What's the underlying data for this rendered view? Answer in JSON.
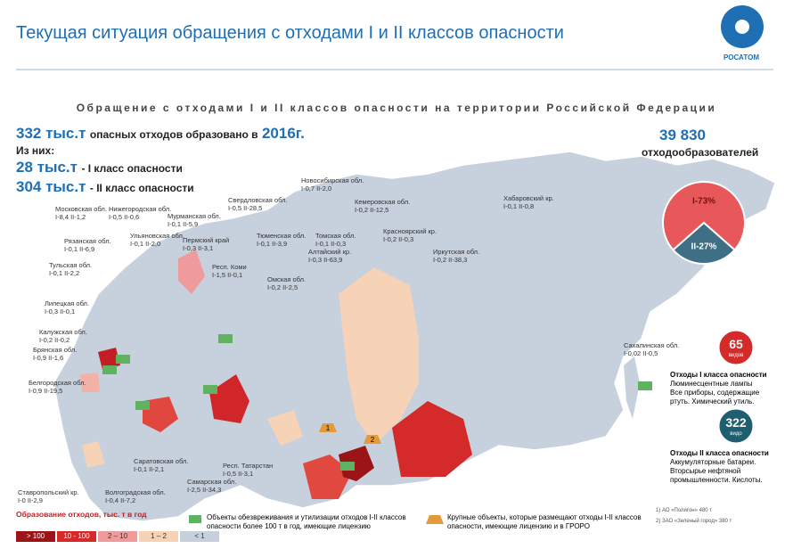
{
  "header": {
    "title": "Текущая ситуация обращения с отходами I и II классов опасности",
    "logo": "РОСАТОМ"
  },
  "subtitle": "Обращение с отходами I и II классов опасности на территории Российской Федерации",
  "stats": {
    "total": "332 тыс.т",
    "total_text": "опасных отходов образовано в",
    "year": "2016г.",
    "of_them": "Из них:",
    "class1": "28 тыс.т",
    "class1_text": "- I класс опасности",
    "class2": "304 тыс.т",
    "class2_text": "- II класс опасности"
  },
  "producers": {
    "count": "39 830",
    "label": "отходообразователей"
  },
  "pie": {
    "slices": [
      {
        "value": 73,
        "label": "I-73%",
        "color": "#e8585a"
      },
      {
        "value": 27,
        "label": "II-27%",
        "color": "#3f6f84"
      }
    ]
  },
  "class1": {
    "count": "65",
    "unit": "видов",
    "title": "Отходы I класса опасности",
    "text": "Люминесцентные лампы Все приборы, содержащие ртуть. Химический утиль."
  },
  "class2": {
    "count": "322",
    "unit": "видо",
    "title": "Отходы II класса опасности",
    "text": "Аккумуляторные батареи. Вторсырье нефтяной промышленности. Кислоты."
  },
  "sites": [
    "1",
    "2"
  ],
  "regions": [
    {
      "name": "Московская обл.",
      "values": "I-8,4 II-1,2"
    },
    {
      "name": "Нижегородская обл.",
      "values": "I-0,5 II-0,6"
    },
    {
      "name": "Мурманская обл.",
      "values": "I-0,1 II-5,9"
    },
    {
      "name": "Свердловская обл.",
      "values": "I-0,5 II-28,5"
    },
    {
      "name": "Новосибирская обл.",
      "values": "I-0,7 II-2,0"
    },
    {
      "name": "Кемеровская обл.",
      "values": "I-0,2 II-12,5"
    },
    {
      "name": "Хабаровский кр.",
      "values": "I-0,1 II-0,8"
    },
    {
      "name": "Рязанская обл.",
      "values": "I-0,1 II-6,9"
    },
    {
      "name": "Ульяновская обл.",
      "values": "I-0,1 II-2,0"
    },
    {
      "name": "Пермский край",
      "values": "I-0,3 II-3,1"
    },
    {
      "name": "Тюменская обл.",
      "values": "I-0,1 II-3,9"
    },
    {
      "name": "Томская обл.",
      "values": "I-0,1 II-0,3"
    },
    {
      "name": "Красноярский кр.",
      "values": "I-0,2 II-0,3"
    },
    {
      "name": "Алтайский кр.",
      "values": "I-0,3 II-63,9"
    },
    {
      "name": "Иркутская обл.",
      "values": "I-0,2 II-38,3"
    },
    {
      "name": "Тульская обл.",
      "values": "I-0,1 II-2,2"
    },
    {
      "name": "Респ. Коми",
      "values": "I-1,5 II-0,1"
    },
    {
      "name": "Омская обл.",
      "values": "I-0,2 II-2,5"
    },
    {
      "name": "Липецкая обл.",
      "values": "I-0,3 II-0,1"
    },
    {
      "name": "Калужская обл.",
      "values": "I-0,2 II-0,2"
    },
    {
      "name": "Брянская обл.",
      "values": "I-0,9 II-1,6"
    },
    {
      "name": "Сахалинская обл.",
      "values": "I-0,02 II-0,5"
    },
    {
      "name": "Белгородская обл.",
      "values": "I-0,9 II-19,5"
    },
    {
      "name": "Саратовская обл.",
      "values": "I-0,1 II-2,1"
    },
    {
      "name": "Респ. Татарстан",
      "values": "I-0,5 II-3,1"
    },
    {
      "name": "Самарская обл.",
      "values": "I-2,5 II-34,3"
    },
    {
      "name": "Волгоградская обл.",
      "values": "I-0,4 II-7,2"
    },
    {
      "name": "Ставропольский кр.",
      "values": "I-0 II-2,9"
    }
  ],
  "legend": {
    "title": "Образование отходов, тыс. т в год",
    "items": [
      {
        "label": "> 100",
        "color": "#9a1418"
      },
      {
        "label": "10 - 100",
        "color": "#d42a2a"
      },
      {
        "label": "2 – 10",
        "color": "#ef9b9b"
      },
      {
        "label": "1 – 2",
        "color": "#f6d3b6"
      },
      {
        "label": "< 1",
        "color": "#c7d0dd"
      }
    ],
    "facilities": "Объекты обезвреживания и утилизации отходов I-II классов опасности более 100 т в год, имеющие лицензию",
    "sites": "Крупные объекты, которые размещают отходы I-II классов опасности, имеющие лицензию и в ГРОРО"
  },
  "footnotes": [
    "1) АО «Полигон» 480 т",
    "2) ЗАО «Зеленый город» 380 т"
  ]
}
